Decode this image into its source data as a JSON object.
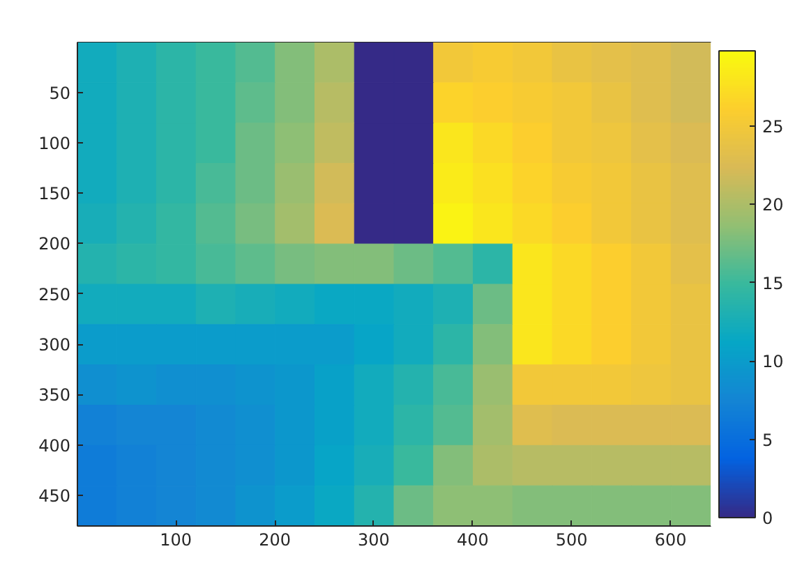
{
  "chart_data": {
    "type": "heatmap",
    "x": [
      20.5,
      60.5,
      100.5,
      140.5,
      180.5,
      220.5,
      260.5,
      300.5,
      340.5,
      380.5,
      420.5,
      460.5,
      500.5,
      540.5,
      580.5,
      620.5
    ],
    "y": [
      20.5,
      60.5,
      100.5,
      140.5,
      180.5,
      220.5,
      260.5,
      300.5,
      340.5,
      380.5,
      420.5,
      460.5
    ],
    "cells": [
      [
        12,
        13,
        14,
        15,
        16,
        18,
        20,
        0,
        0,
        25,
        25.5,
        25,
        24,
        23.5,
        23,
        22
      ],
      [
        12,
        13,
        14,
        15,
        16.5,
        18,
        20.5,
        0,
        0,
        26.5,
        26,
        25.5,
        25,
        24,
        23,
        22
      ],
      [
        12,
        13,
        14,
        15,
        17,
        18.5,
        21,
        0,
        0,
        28,
        27,
        26,
        25,
        24.5,
        23.5,
        22.5
      ],
      [
        12,
        13,
        14,
        15.5,
        17,
        19,
        22,
        0,
        0,
        28.5,
        27.5,
        26.5,
        25.5,
        25,
        24,
        23
      ],
      [
        12.5,
        13.5,
        14.5,
        16,
        17.5,
        19.5,
        22.5,
        0,
        0,
        29,
        28,
        27,
        26,
        25,
        24,
        23
      ],
      [
        13.5,
        14,
        14.5,
        15.5,
        16.5,
        17.5,
        18,
        18,
        17,
        16,
        14,
        28,
        27,
        26,
        25,
        23.5
      ],
      [
        12,
        12,
        12,
        13,
        12.5,
        12,
        11.5,
        11.5,
        12,
        13,
        17,
        28,
        27,
        26,
        25,
        24
      ],
      [
        10,
        10,
        10,
        10,
        10,
        10,
        10,
        11,
        12,
        14,
        18,
        28,
        27,
        26,
        25,
        24
      ],
      [
        8.5,
        9,
        8.5,
        8.5,
        9,
        9.5,
        10.5,
        12,
        13.5,
        15.5,
        19,
        25,
        25,
        25,
        24.5,
        24
      ],
      [
        7,
        7.5,
        7.5,
        8,
        8.5,
        9.5,
        10.5,
        12,
        14,
        16,
        19.5,
        23,
        22.5,
        22.5,
        22.5,
        22.5
      ],
      [
        6.5,
        7,
        7.5,
        8,
        8.5,
        9.5,
        11,
        12.5,
        15,
        18,
        20,
        20.5,
        20.5,
        20.5,
        20.5,
        20.5
      ],
      [
        6.5,
        7,
        7.5,
        8,
        9,
        10,
        11.5,
        13.5,
        17,
        18.5,
        18.5,
        18,
        18,
        18,
        18,
        18
      ]
    ],
    "xlim": [
      0.5,
      640.5
    ],
    "ylim": [
      480.5,
      0.5
    ],
    "xticks": [
      100,
      200,
      300,
      400,
      500,
      600
    ],
    "yticks": [
      50,
      100,
      150,
      200,
      250,
      300,
      350,
      400,
      450
    ],
    "clim": [
      0,
      29.8
    ],
    "cticks": [
      0,
      5,
      10,
      15,
      20,
      25
    ]
  }
}
